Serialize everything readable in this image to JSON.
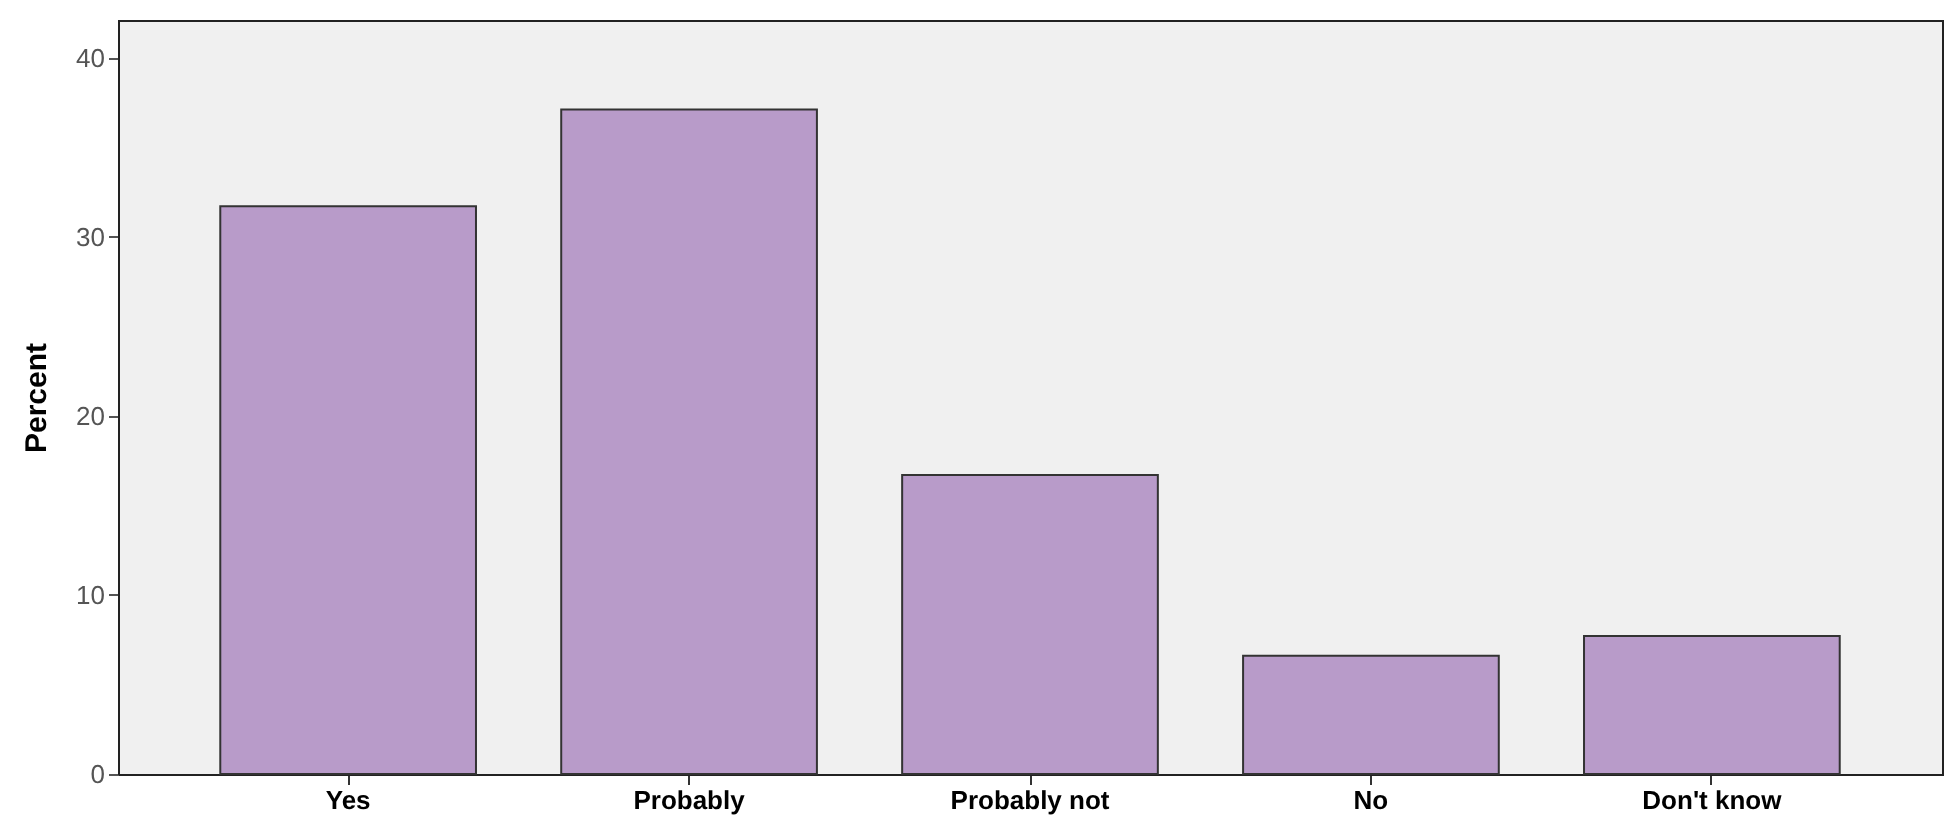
{
  "chart_data": {
    "type": "bar",
    "ylabel": "Percent",
    "categories": [
      "Yes",
      "Probably",
      "Probably not",
      "No",
      "Don't know"
    ],
    "values": [
      31.7,
      37.1,
      16.7,
      6.6,
      7.7
    ],
    "color": "#b89bc9",
    "ylim": [
      0,
      42.1
    ],
    "yticks": [
      0,
      10,
      20,
      30,
      40
    ],
    "grid": false
  }
}
